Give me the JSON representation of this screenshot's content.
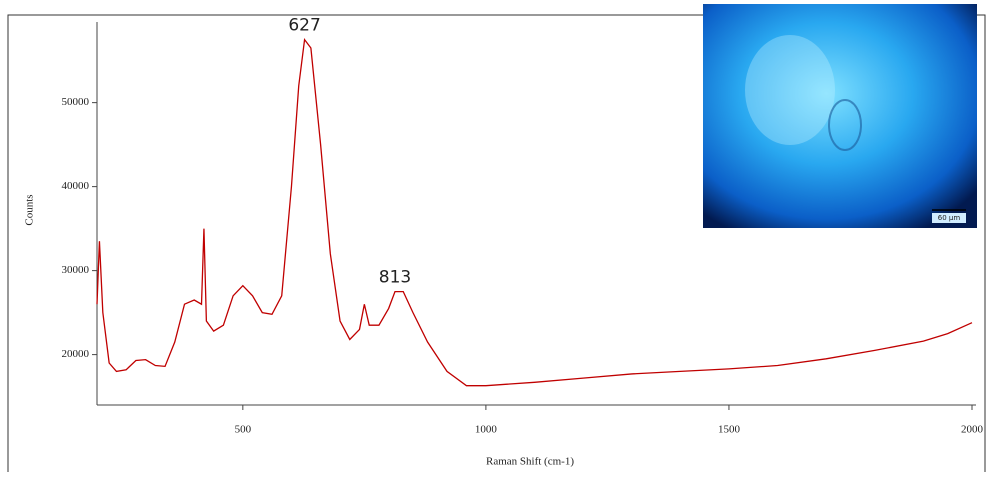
{
  "chart_data": {
    "type": "line",
    "xlabel": "Raman Shift (cm-1)",
    "ylabel": "Counts",
    "x": [
      200,
      205,
      212,
      225,
      240,
      260,
      280,
      300,
      320,
      340,
      360,
      380,
      400,
      415,
      420,
      425,
      440,
      460,
      480,
      500,
      520,
      540,
      560,
      580,
      600,
      615,
      627,
      640,
      660,
      680,
      700,
      720,
      740,
      750,
      760,
      780,
      800,
      813,
      830,
      850,
      880,
      920,
      960,
      1000,
      1100,
      1200,
      1300,
      1400,
      1500,
      1600,
      1700,
      1800,
      1900,
      1950,
      2000
    ],
    "series": [
      {
        "name": "Counts",
        "color": "#c00000",
        "values": [
          26000,
          33500,
          25000,
          19000,
          18000,
          18200,
          19300,
          19400,
          18700,
          18600,
          21500,
          26000,
          26500,
          26000,
          35000,
          24000,
          22800,
          23500,
          27000,
          28200,
          27000,
          25000,
          24800,
          27000,
          40000,
          52000,
          57500,
          56500,
          45000,
          32000,
          24000,
          21800,
          23000,
          26000,
          23500,
          23500,
          25500,
          27500,
          27500,
          25000,
          21500,
          18000,
          16300,
          16300,
          16700,
          17200,
          17700,
          18000,
          18300,
          18700,
          19500,
          20500,
          21600,
          22500,
          23800
        ]
      }
    ],
    "xlim": [
      200,
      2000
    ],
    "xticks": [
      500,
      1000,
      1500,
      2000
    ],
    "ylim": [
      14000,
      59600
    ],
    "yticks": [
      20000,
      30000,
      40000,
      50000
    ],
    "annotations": [
      {
        "text": "627",
        "x": 627
      },
      {
        "text": "813",
        "x": 813
      }
    ],
    "image_scale_label": "60 μm"
  }
}
